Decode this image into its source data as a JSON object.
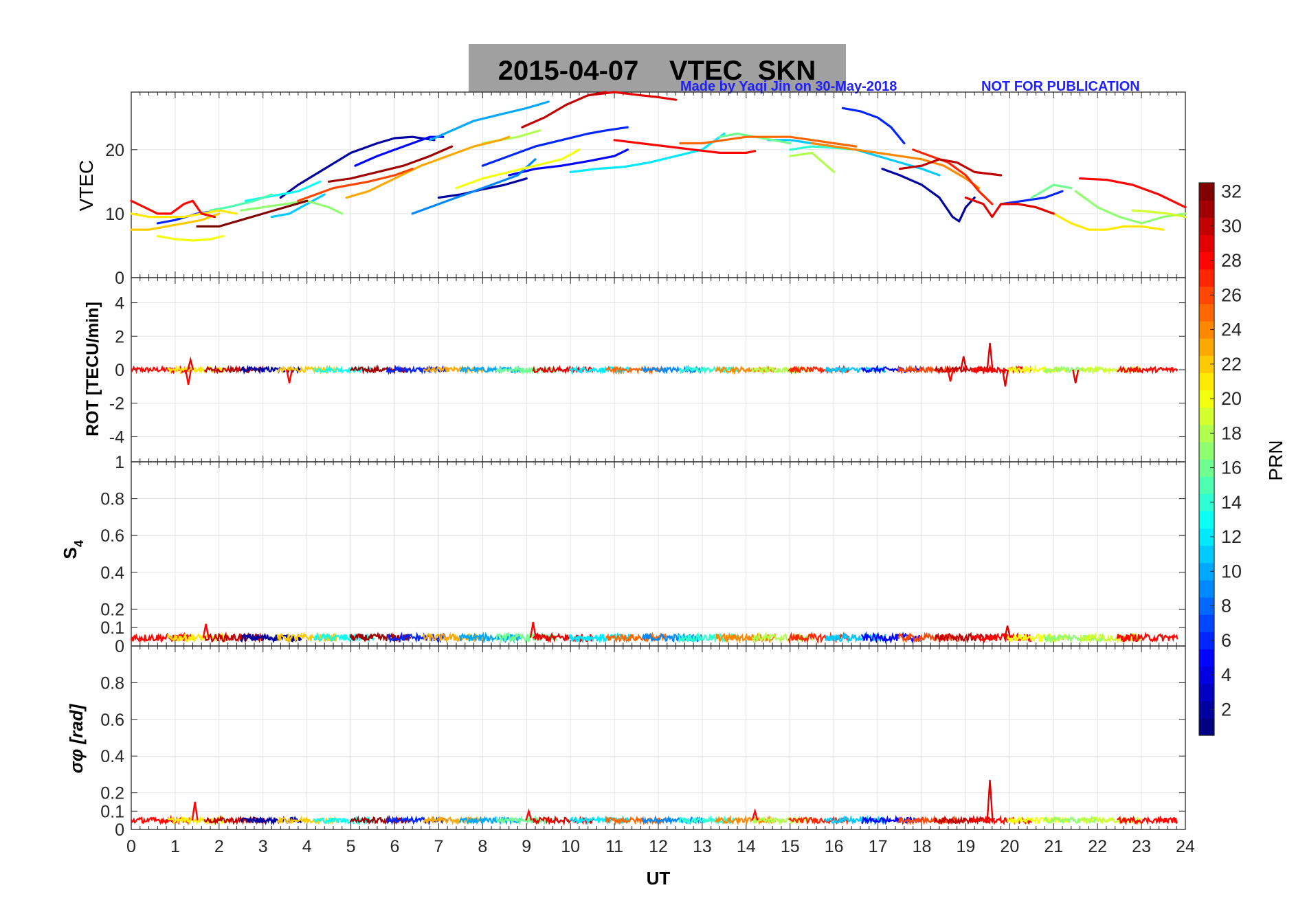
{
  "figure": {
    "title": "2015-04-07    VTEC  SKN",
    "credit": "Made by Yaqi Jin on 30-May-2018",
    "notice": "NOT FOR PUBLICATION",
    "title_bg_color": "#a0a0a0",
    "notice_color": "#1f1fff"
  },
  "chart_data": [
    {
      "type": "line",
      "panel": "vtec",
      "ylabel": "VTEC",
      "xlim": [
        0,
        24
      ],
      "ylim": [
        0,
        29
      ],
      "yticks": [
        0,
        10,
        20
      ],
      "grid": true,
      "series": [
        {
          "prn": 2,
          "x": [
            3.4,
            3.8,
            4.4,
            5.0,
            5.6,
            6.0,
            6.4,
            6.9
          ],
          "y": [
            12.5,
            14.5,
            17,
            19.5,
            21,
            21.8,
            22,
            21.5
          ]
        },
        {
          "prn": 2,
          "x": [
            7.0,
            7.5,
            8.0,
            8.5,
            9.0
          ],
          "y": [
            12.5,
            13,
            13.8,
            14.5,
            15.5
          ]
        },
        {
          "prn": 2,
          "x": [
            17.1,
            17.5,
            18.0,
            18.4,
            18.7,
            18.85,
            19.0,
            19.2
          ],
          "y": [
            17,
            16,
            14.5,
            12.5,
            9.5,
            8.8,
            11,
            12.5
          ]
        },
        {
          "prn": 5,
          "x": [
            5.1,
            5.6,
            6.0,
            6.4,
            6.8,
            7.1
          ],
          "y": [
            17.5,
            19,
            20,
            21,
            22,
            22
          ]
        },
        {
          "prn": 5,
          "x": [
            8.6,
            9.2,
            9.8,
            10.4,
            11.0,
            11.3
          ],
          "y": [
            16,
            17,
            17.5,
            18.2,
            19,
            20
          ]
        },
        {
          "prn": 6,
          "x": [
            0.6,
            1.0,
            1.5,
            2.0
          ],
          "y": [
            8.5,
            9,
            10,
            10.5
          ]
        },
        {
          "prn": 6,
          "x": [
            8.0,
            8.6,
            9.2,
            9.8,
            10.4,
            10.8,
            11.3
          ],
          "y": [
            17.5,
            19,
            20.5,
            21.5,
            22.5,
            23,
            23.5
          ]
        },
        {
          "prn": 6,
          "x": [
            16.2,
            16.6,
            17.0,
            17.3,
            17.6
          ],
          "y": [
            26.5,
            26,
            25,
            23.5,
            21
          ]
        },
        {
          "prn": 6,
          "x": [
            19.8,
            20.3,
            20.8,
            21.2
          ],
          "y": [
            11.5,
            12,
            12.5,
            13.5
          ]
        },
        {
          "prn": 9,
          "x": [
            6.4,
            7.0,
            7.6,
            8.2,
            8.8,
            9.2
          ],
          "y": [
            10,
            11.5,
            13,
            14.5,
            16,
            18.5
          ]
        },
        {
          "prn": 10,
          "x": [
            6.8,
            7.3,
            7.8,
            8.4,
            9.0,
            9.5
          ],
          "y": [
            21.5,
            23,
            24.5,
            25.5,
            26.5,
            27.5
          ]
        },
        {
          "prn": 11,
          "x": [
            14.5,
            15.0,
            15.5,
            16.0,
            16.5,
            17.0,
            17.5,
            18.0,
            18.4
          ],
          "y": [
            21.5,
            21.5,
            21,
            20.5,
            20,
            19,
            18,
            17,
            16
          ]
        },
        {
          "prn": 11,
          "x": [
            3.2,
            3.6,
            4.0,
            4.4
          ],
          "y": [
            9.5,
            10,
            11.5,
            13
          ]
        },
        {
          "prn": 12,
          "x": [
            10.0,
            10.6,
            11.2,
            11.8,
            12.4,
            13.0,
            13.5
          ],
          "y": [
            16.5,
            17,
            17.3,
            18,
            19,
            20,
            22.5
          ]
        },
        {
          "prn": 13,
          "x": [
            2.6,
            3.0,
            3.4,
            3.8,
            4.3
          ],
          "y": [
            12,
            12.5,
            13,
            13.5,
            15
          ]
        },
        {
          "prn": 14,
          "x": [
            15.0,
            15.5,
            16.0,
            16.5,
            17.0,
            17.5
          ],
          "y": [
            20,
            20.5,
            20.3,
            20,
            19.5,
            19
          ]
        },
        {
          "prn": 15,
          "x": [
            1.8,
            2.2,
            2.8,
            3.2
          ],
          "y": [
            10.5,
            11,
            12,
            13
          ]
        },
        {
          "prn": 16,
          "x": [
            13.4,
            13.8,
            14.2,
            14.6,
            15.0
          ],
          "y": [
            22,
            22.5,
            22,
            21.5,
            21
          ]
        },
        {
          "prn": 16,
          "x": [
            20.5,
            21.0,
            21.4
          ],
          "y": [
            12.5,
            14.5,
            14
          ]
        },
        {
          "prn": 17,
          "x": [
            21.5,
            22.0,
            22.5,
            23.0,
            23.5,
            24.0
          ],
          "y": [
            13.5,
            11,
            9.5,
            8.5,
            9.5,
            10
          ]
        },
        {
          "prn": 17,
          "x": [
            2.5,
            3.0,
            3.5,
            4.0,
            4.5,
            4.8
          ],
          "y": [
            10.5,
            11,
            11.5,
            12,
            11,
            10
          ]
        },
        {
          "prn": 18,
          "x": [
            15.0,
            15.5,
            16.0
          ],
          "y": [
            19,
            19.5,
            16.5
          ]
        },
        {
          "prn": 18,
          "x": [
            8.0,
            8.4,
            8.8,
            9.3
          ],
          "y": [
            21,
            21.5,
            22,
            23
          ]
        },
        {
          "prn": 19,
          "x": [
            22.8,
            23.2,
            23.6,
            24.0
          ],
          "y": [
            10.5,
            10.3,
            10,
            9.5
          ]
        },
        {
          "prn": 20,
          "x": [
            0.6,
            1.0,
            1.4,
            1.8,
            2.1
          ],
          "y": [
            6.5,
            6,
            5.8,
            6,
            6.5
          ]
        },
        {
          "prn": 20,
          "x": [
            7.4,
            8.0,
            8.6,
            9.2,
            9.8,
            10.2
          ],
          "y": [
            14,
            15.5,
            16.5,
            17.5,
            18.5,
            20
          ]
        },
        {
          "prn": 21,
          "x": [
            0.0,
            0.4,
            0.8,
            1.2,
            1.6,
            2.0,
            2.4
          ],
          "y": [
            10,
            9.5,
            9.5,
            9.5,
            10,
            10.5,
            10
          ]
        },
        {
          "prn": 21,
          "x": [
            19.8,
            20.2,
            20.6,
            21.0,
            21.4,
            21.8,
            22.2,
            22.6,
            23.0,
            23.5
          ],
          "y": [
            11.5,
            11.5,
            11,
            10,
            8.5,
            7.5,
            7.5,
            8,
            8,
            7.5
          ]
        },
        {
          "prn": 22,
          "x": [
            0.0,
            0.4,
            0.8,
            1.2,
            1.6,
            2.0
          ],
          "y": [
            7.5,
            7.5,
            8,
            8.5,
            9,
            10
          ]
        },
        {
          "prn": 23,
          "x": [
            4.9,
            5.4,
            6.0,
            6.6,
            7.2,
            7.8,
            8.4,
            8.6
          ],
          "y": [
            12.5,
            13.5,
            15.5,
            17.5,
            19,
            20.5,
            21.5,
            22
          ]
        },
        {
          "prn": 24,
          "x": [
            15.5,
            16.0,
            16.5,
            17.0,
            17.5,
            18.0,
            18.5,
            19.0,
            19.3
          ],
          "y": [
            21,
            20.5,
            20,
            19.5,
            19,
            18.5,
            17.5,
            15.5,
            14
          ]
        },
        {
          "prn": 25,
          "x": [
            12.5,
            13.0,
            13.5,
            14.0,
            14.5,
            15.0,
            15.5,
            16.0,
            16.5
          ],
          "y": [
            21,
            21,
            21.5,
            22,
            22,
            22,
            21.5,
            21,
            20.5
          ]
        },
        {
          "prn": 26,
          "x": [
            3.8,
            4.2,
            4.6,
            5.0,
            5.4,
            6.0,
            6.4
          ],
          "y": [
            12,
            13,
            14,
            14.5,
            15,
            16,
            17
          ]
        },
        {
          "prn": 27,
          "x": [
            17.8,
            18.2,
            18.6,
            19.0,
            19.3,
            19.6
          ],
          "y": [
            20,
            19,
            18,
            16,
            13.5,
            11.5
          ]
        },
        {
          "prn": 28,
          "x": [
            0.0,
            0.3,
            0.6,
            0.9,
            1.2,
            1.4,
            1.6,
            1.9
          ],
          "y": [
            12,
            11,
            10,
            10,
            11.5,
            12,
            10,
            9.5
          ]
        },
        {
          "prn": 28,
          "x": [
            21.6,
            22.2,
            22.8,
            23.4,
            24.0
          ],
          "y": [
            15.5,
            15.3,
            14.5,
            13,
            11
          ]
        },
        {
          "prn": 28,
          "x": [
            11.0,
            11.6,
            12.2,
            12.8,
            13.4,
            14.0,
            14.2
          ],
          "y": [
            21.5,
            21,
            20.5,
            20,
            19.5,
            19.5,
            19.8
          ]
        },
        {
          "prn": 29,
          "x": [
            19.0,
            19.4,
            19.6,
            19.8,
            20.2,
            20.6,
            21.0
          ],
          "y": [
            12.5,
            11.5,
            9.5,
            11.5,
            11.5,
            11,
            10
          ]
        },
        {
          "prn": 29,
          "x": [
            10.4,
            11.0,
            11.6,
            12.0,
            12.4
          ],
          "y": [
            28.5,
            29,
            28.5,
            28.2,
            27.8
          ]
        },
        {
          "prn": 30,
          "x": [
            8.9,
            9.4,
            9.9,
            10.4,
            10.8
          ],
          "y": [
            23.5,
            25,
            27,
            28.5,
            29
          ]
        },
        {
          "prn": 30,
          "x": [
            17.5,
            18.0,
            18.4,
            18.8,
            19.2,
            19.8
          ],
          "y": [
            17,
            17.5,
            18.5,
            18,
            16.5,
            16
          ]
        },
        {
          "prn": 31,
          "x": [
            4.5,
            5.0,
            5.6,
            6.2,
            6.8,
            7.3
          ],
          "y": [
            15,
            15.5,
            16.5,
            17.5,
            19,
            20.5
          ]
        },
        {
          "prn": 32,
          "x": [
            1.5,
            2.0,
            2.5,
            3.0,
            3.5,
            4.0
          ],
          "y": [
            8,
            8,
            9,
            10,
            11,
            12
          ]
        }
      ]
    },
    {
      "type": "line",
      "panel": "rot",
      "ylabel": "ROT [TECU/min]",
      "xlim": [
        0,
        24
      ],
      "ylim": [
        -5.5,
        5.5
      ],
      "yticks": [
        -4,
        -2,
        0,
        2,
        4
      ],
      "grid": true,
      "baseline": 0,
      "noise_amplitude": 0.15,
      "spikes": [
        {
          "x": 1.3,
          "y": -0.9
        },
        {
          "x": 1.35,
          "y": 0.6
        },
        {
          "x": 3.6,
          "y": -0.8
        },
        {
          "x": 18.65,
          "y": -0.7
        },
        {
          "x": 18.95,
          "y": 0.8
        },
        {
          "x": 19.55,
          "y": 1.6
        },
        {
          "x": 19.9,
          "y": -1.0
        },
        {
          "x": 21.5,
          "y": -0.8
        }
      ]
    },
    {
      "type": "line",
      "panel": "s4",
      "ylabel": "S4",
      "xlim": [
        0,
        24
      ],
      "ylim": [
        0,
        1
      ],
      "yticks": [
        0,
        0.1,
        0.2,
        0.4,
        0.6,
        0.8,
        1
      ],
      "grid": true,
      "baseline": 0.045,
      "noise_amplitude": 0.02,
      "spikes": [
        {
          "x": 1.7,
          "y": 0.12
        },
        {
          "x": 9.15,
          "y": 0.13
        },
        {
          "x": 19.95,
          "y": 0.11
        }
      ]
    },
    {
      "type": "line",
      "panel": "sigma_phi",
      "ylabel": "σφ [rad]",
      "xlabel": "UT",
      "xlim": [
        0,
        24
      ],
      "ylim": [
        0,
        1
      ],
      "yticks": [
        0,
        0.1,
        0.2,
        0.4,
        0.6,
        0.8
      ],
      "xticks": [
        0,
        1,
        2,
        3,
        4,
        5,
        6,
        7,
        8,
        9,
        10,
        11,
        12,
        13,
        14,
        15,
        16,
        17,
        18,
        19,
        20,
        21,
        22,
        23,
        24
      ],
      "grid": true,
      "baseline": 0.05,
      "noise_amplitude": 0.015,
      "spikes": [
        {
          "x": 1.45,
          "y": 0.15
        },
        {
          "x": 19.55,
          "y": 0.27
        },
        {
          "x": 9.05,
          "y": 0.1
        },
        {
          "x": 14.2,
          "y": 0.1
        }
      ]
    },
    {
      "type": "heatmap",
      "panel": "colorbar",
      "label": "PRN",
      "range": [
        1,
        32
      ],
      "ticks": [
        2,
        4,
        6,
        8,
        10,
        12,
        14,
        16,
        18,
        20,
        22,
        24,
        26,
        28,
        30,
        32
      ],
      "colormap": "jet"
    }
  ]
}
